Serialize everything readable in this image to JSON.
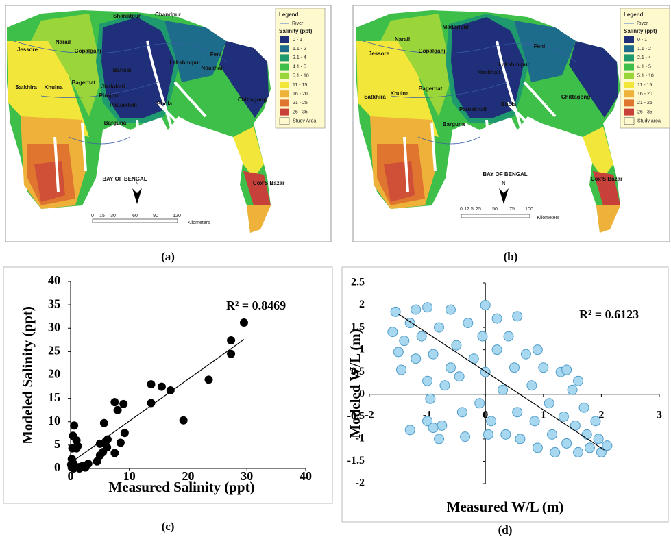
{
  "maps": [
    {
      "caption": "(a)",
      "legend_title": "Legend",
      "river": "River",
      "salinity_title": "Salinity (ppt)",
      "classes": [
        {
          "label": "0 - 1",
          "color": "#1f2f7a"
        },
        {
          "label": "1.1 - 2",
          "color": "#1e6c8c"
        },
        {
          "label": "2.1 - 4",
          "color": "#1f9a6e"
        },
        {
          "label": "4.1 - 5",
          "color": "#3dbf4a"
        },
        {
          "label": "5.1 - 10",
          "color": "#9ad53a"
        },
        {
          "label": "11 - 15",
          "color": "#f2e63a"
        },
        {
          "label": "16 - 20",
          "color": "#eeb23a"
        },
        {
          "label": "21 - 25",
          "color": "#e0752f"
        },
        {
          "label": "26 - 35",
          "color": "#c8403a"
        }
      ],
      "study_area": "Study Area",
      "places": [
        "Jessore",
        "Narail",
        "Gopalganj",
        "Shariatpur",
        "Chandpur",
        "Barisal",
        "Lakshmipur",
        "Feni",
        "Noakhali",
        "Satkhira",
        "Khulna",
        "Bagerhat",
        "Jhalokati",
        "Pirojpur",
        "Patuakhali",
        "Bhola",
        "Barguna",
        "Chittagong",
        "Cox'S Bazar"
      ],
      "sea": "BAY OF BENGAL",
      "north": "N",
      "scale": [
        "0",
        "15",
        "30",
        "60",
        "90",
        "120"
      ],
      "scale_unit": "Kilometers"
    },
    {
      "caption": "(b)",
      "legend_title": "Legend",
      "river": "River",
      "salinity_title": "Salinity (ppt)",
      "classes": [
        {
          "label": "0 - 1",
          "color": "#1f2f7a"
        },
        {
          "label": "1.1 - 2",
          "color": "#1e6c8c"
        },
        {
          "label": "2.1 - 4",
          "color": "#1f9a6e"
        },
        {
          "label": "4.1 - 5",
          "color": "#3dbf4a"
        },
        {
          "label": "5.1 - 10",
          "color": "#9ad53a"
        },
        {
          "label": "11 - 15",
          "color": "#f2e63a"
        },
        {
          "label": "16 - 20",
          "color": "#eeb23a"
        },
        {
          "label": "21 - 25",
          "color": "#e0752f"
        },
        {
          "label": "26 - 35",
          "color": "#c8403a"
        }
      ],
      "study_area": "Study area",
      "places": [
        "Jessore",
        "Narail",
        "Gopalganj",
        "Madaripur",
        "Lakshmipur",
        "Feni",
        "Noakhali",
        "Satkhira",
        "Khulna",
        "Bagerhat",
        "Patuakhali",
        "Bhola",
        "Barguna",
        "Chittagong",
        "Cox'S Bazar"
      ],
      "sea": "BAY OF BENGAL",
      "north": "N",
      "scale": [
        "0",
        "12.5",
        "25",
        "50",
        "75",
        "100"
      ],
      "scale_unit": "Kilometers"
    }
  ],
  "chart_data": [
    {
      "type": "scatter",
      "caption": "(c)",
      "x_label": "Measured Salinity (ppt)",
      "y_label": "Modeled Salinity (ppt)",
      "annotation": "R² = 0.8469",
      "xlim": [
        0,
        40
      ],
      "ylim": [
        0,
        40
      ],
      "xticks": [
        0,
        10,
        20,
        30,
        40
      ],
      "yticks": [
        0,
        5,
        10,
        15,
        20,
        25,
        30,
        35,
        40
      ],
      "marker_color": "#000000",
      "marker_stroke": "#000000",
      "marker_radius": 5.5,
      "x": [
        29.5,
        27.3,
        27.3,
        23.5,
        19.2,
        17,
        15.5,
        13.7,
        13.7,
        9.2,
        9,
        8,
        7.5,
        7.5,
        6.3,
        6.2,
        5.7,
        5.5,
        5,
        5,
        4.5,
        3,
        2,
        1.5,
        1,
        1,
        1.2,
        0.6,
        0.4,
        0.3,
        0.2,
        0.5,
        0.2,
        0.8,
        0.1,
        1.5,
        2.5,
        0.5,
        6,
        8.5
      ],
      "values": [
        31.2,
        27.4,
        24.5,
        19,
        10.3,
        16.7,
        17.5,
        18,
        14,
        7.6,
        13.8,
        12.5,
        14.2,
        3.3,
        6.2,
        4.5,
        9.7,
        3.5,
        5.3,
        2.8,
        1.5,
        1,
        0.5,
        0.3,
        6,
        4.3,
        4.8,
        9.2,
        7,
        4.3,
        2,
        1,
        0.2,
        0.3,
        0.8,
        0,
        0.2,
        0,
        5.8,
        5.5
      ],
      "trendline": {
        "x": [
          0,
          29.5
        ],
        "y": [
          1.2,
          27.6
        ]
      }
    },
    {
      "type": "scatter",
      "caption": "(d)",
      "x_label": "Measured W/L (m)",
      "y_label": "Modeled W/L (m)",
      "annotation": "R² = 0.6123",
      "xlim": [
        -2,
        3
      ],
      "ylim": [
        -2,
        2.5
      ],
      "xticks": [
        -2,
        -1,
        0,
        1,
        2,
        3
      ],
      "yticks": [
        -2,
        -1.5,
        -1,
        -0.5,
        0,
        0.5,
        1,
        1.5,
        2,
        2.5
      ],
      "marker_color": "#a8d8f0",
      "marker_stroke": "#4f9bc9",
      "marker_radius": 7,
      "x": [
        -1.6,
        -1.55,
        -1.5,
        -1.45,
        -1.4,
        -1.3,
        -1.2,
        -1.2,
        -1.1,
        -1.0,
        -1.0,
        -0.95,
        -0.9,
        -0.8,
        -0.75,
        -0.7,
        -0.6,
        -0.5,
        -0.45,
        -0.4,
        -0.35,
        -0.3,
        -0.2,
        -0.1,
        -0.05,
        0,
        0,
        0.1,
        0.2,
        0.3,
        0.35,
        0.4,
        0.5,
        0.55,
        0.6,
        0.7,
        0.8,
        0.85,
        0.9,
        1.0,
        1.1,
        1.15,
        1.2,
        1.3,
        1.35,
        1.4,
        1.5,
        1.55,
        1.6,
        1.7,
        1.75,
        1.8,
        1.9,
        1.95,
        2.0,
        2.1,
        0.55,
        -1.0,
        -0.9,
        -0.8,
        -1.3,
        1.4,
        0.2,
        -0.6,
        0.9,
        1.6,
        0.05
      ],
      "values": [
        1.4,
        1.85,
        0.95,
        0.55,
        1.2,
        1.6,
        1.9,
        0.8,
        1.3,
        1.95,
        0.3,
        -0.1,
        0.9,
        1.5,
        -0.7,
        0.2,
        1.9,
        1.1,
        0.4,
        -0.4,
        -0.95,
        1.6,
        0.8,
        -0.2,
        1.3,
        2.0,
        0.5,
        -0.6,
        1.0,
        0.1,
        -0.9,
        1.3,
        0.6,
        -0.4,
        -1.0,
        0.9,
        0.2,
        -0.6,
        -1.2,
        0.6,
        -0.2,
        -0.9,
        -1.3,
        0.5,
        -0.5,
        -1.1,
        0.1,
        -0.7,
        -1.3,
        -0.3,
        -0.9,
        -1.2,
        -0.6,
        -1.0,
        -1.3,
        -1.15,
        1.75,
        -0.6,
        -0.75,
        -1.0,
        -0.8,
        0.55,
        1.7,
        0.6,
        1.0,
        0.3,
        -0.9
      ],
      "trendline": {
        "x": [
          -1.5,
          2.05
        ],
        "y": [
          1.8,
          -1.25
        ]
      }
    }
  ]
}
